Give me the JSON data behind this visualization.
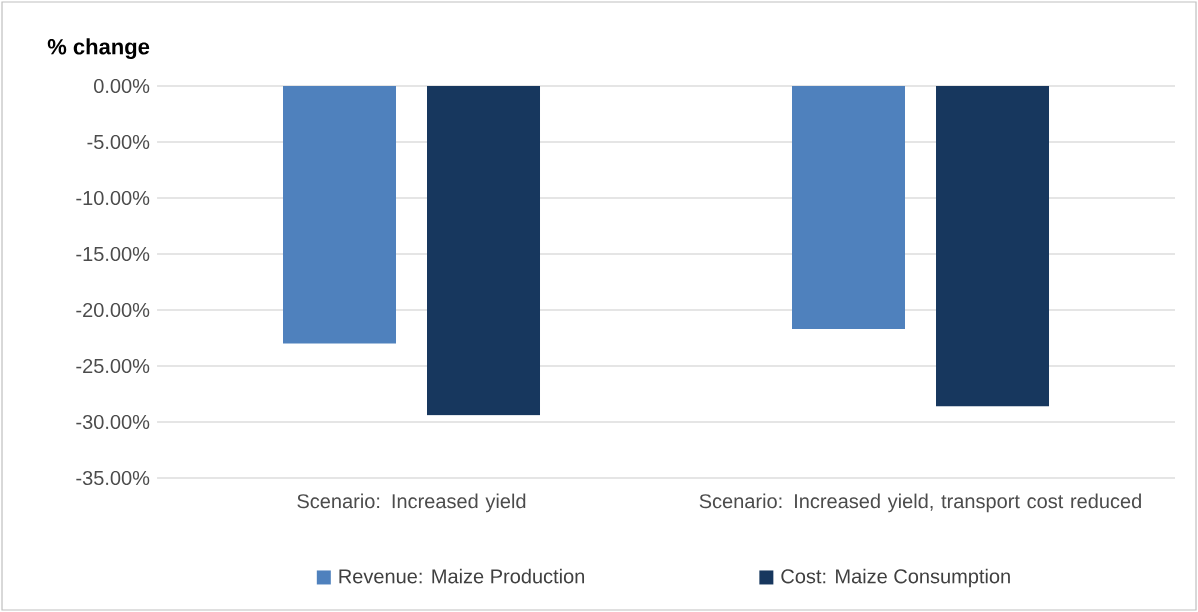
{
  "chart_data": {
    "type": "bar",
    "ylabel": "% change",
    "categories": [
      "Scenario: Increased yield",
      "Scenario: Increased yield, transport cost reduced"
    ],
    "series": [
      {
        "name": "Revenue: Maize Production",
        "color": "#4f81bd",
        "values": [
          -23.0,
          -21.7
        ]
      },
      {
        "name": "Cost: Maize Consumption",
        "color": "#17375e",
        "values": [
          -29.4,
          -28.6
        ]
      }
    ],
    "ylim": [
      -35,
      0
    ],
    "yticks": [
      {
        "value": 0,
        "label": "0.00%"
      },
      {
        "value": -5,
        "label": "-5.00%"
      },
      {
        "value": -10,
        "label": "-10.00%"
      },
      {
        "value": -15,
        "label": "-15.00%"
      },
      {
        "value": -20,
        "label": "-20.00%"
      },
      {
        "value": -25,
        "label": "-25.00%"
      },
      {
        "value": -30,
        "label": "-30.00%"
      },
      {
        "value": -35,
        "label": "-35.00%"
      }
    ],
    "grid": "y",
    "legend": "bottom"
  }
}
